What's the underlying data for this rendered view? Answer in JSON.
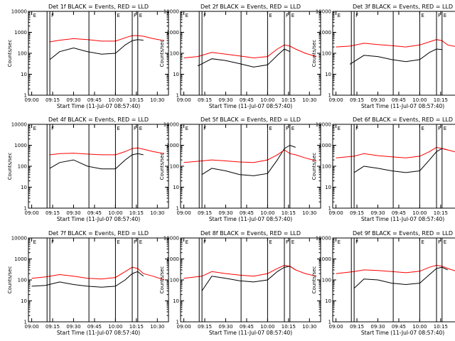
{
  "figure": {
    "ylabel": "Counts/sec",
    "xlabel": "Start Time (11-Jul-07 08:57:40)",
    "colors": {
      "events": "#000000",
      "lld": "#ff0000",
      "axes": "#000000"
    },
    "x_tick_labels": [
      "09:00",
      "09:15",
      "09:30",
      "09:45",
      "10:00",
      "10:15",
      "10:30"
    ],
    "y_tick_labels": [
      "1",
      "10",
      "100",
      "1000",
      "10000"
    ],
    "marker_labels": [
      "E",
      "F",
      "E",
      "F",
      "E"
    ]
  },
  "chart_data": [
    {
      "type": "line",
      "title": "Det 1f BLACK = Events, RED = LLD",
      "xlabel": "Start Time (11-Jul-07 08:57:40)",
      "ylabel": "Counts/sec",
      "yscale": "log",
      "xlim": [
        "08:57:40",
        "10:38"
      ],
      "ylim": [
        1,
        10000
      ],
      "x": [
        "09:13",
        "09:20",
        "09:30",
        "09:40",
        "09:50",
        "10:00",
        "10:07",
        "10:12",
        "10:16",
        "10:20",
        "10:27",
        "10:35"
      ],
      "series": [
        {
          "name": "Events",
          "color": "#000000",
          "values": [
            50,
            120,
            180,
            120,
            90,
            100,
            250,
            400,
            450,
            420,
            null,
            null
          ]
        },
        {
          "name": "LLD",
          "color": "#ff0000",
          "values": [
            350,
            420,
            500,
            450,
            380,
            380,
            550,
            700,
            700,
            650,
            500,
            400
          ]
        }
      ]
    },
    {
      "type": "line",
      "title": "Det 2f BLACK = Events, RED = LLD",
      "xlabel": "Start Time (11-Jul-07 08:57:40)",
      "ylabel": "Counts/sec",
      "yscale": "log",
      "xlim": [
        "08:57:40",
        "10:38"
      ],
      "ylim": [
        1,
        10000
      ],
      "x": [
        "09:00",
        "09:10",
        "09:20",
        "09:30",
        "09:40",
        "09:50",
        "10:00",
        "10:07",
        "10:12",
        "10:16",
        "10:20",
        "10:27",
        "10:35"
      ],
      "series": [
        {
          "name": "Events",
          "color": "#000000",
          "values": [
            null,
            25,
            55,
            45,
            32,
            22,
            28,
            80,
            160,
            120,
            null,
            null,
            null
          ]
        },
        {
          "name": "LLD",
          "color": "#ff0000",
          "values": [
            60,
            70,
            110,
            90,
            75,
            60,
            70,
            160,
            250,
            220,
            160,
            100,
            70
          ]
        }
      ]
    },
    {
      "type": "line",
      "title": "Det 3f BLACK = Events, RED = LLD",
      "xlabel": "Start Time (11-Jul-07 08:57:40)",
      "ylabel": "Counts/sec",
      "yscale": "log",
      "xlim": [
        "08:57:40",
        "10:38"
      ],
      "ylim": [
        1,
        10000
      ],
      "x": [
        "09:00",
        "09:10",
        "09:20",
        "09:30",
        "09:40",
        "09:50",
        "10:00",
        "10:07",
        "10:12",
        "10:16",
        "10:20",
        "10:27",
        "10:35"
      ],
      "series": [
        {
          "name": "Events",
          "color": "#000000",
          "values": [
            null,
            30,
            80,
            70,
            50,
            40,
            50,
            110,
            160,
            150,
            null,
            null,
            null
          ]
        },
        {
          "name": "LLD",
          "color": "#ff0000",
          "values": [
            200,
            220,
            300,
            260,
            230,
            200,
            250,
            350,
            450,
            400,
            250,
            200,
            180
          ]
        }
      ]
    },
    {
      "type": "line",
      "title": "Det 4f BLACK = Events, RED = LLD",
      "xlabel": "Start Time (11-Jul-07 08:57:40)",
      "ylabel": "Counts/sec",
      "yscale": "log",
      "xlim": [
        "08:57:40",
        "10:38"
      ],
      "ylim": [
        1,
        10000
      ],
      "x": [
        "09:13",
        "09:20",
        "09:30",
        "09:40",
        "09:50",
        "10:00",
        "10:07",
        "10:12",
        "10:16",
        "10:20",
        "10:27",
        "10:35"
      ],
      "series": [
        {
          "name": "Events",
          "color": "#000000",
          "values": [
            80,
            150,
            200,
            100,
            75,
            75,
            200,
            350,
            400,
            350,
            null,
            null
          ]
        },
        {
          "name": "LLD",
          "color": "#ff0000",
          "values": [
            350,
            400,
            420,
            380,
            350,
            350,
            500,
            700,
            750,
            650,
            500,
            400
          ]
        }
      ]
    },
    {
      "type": "line",
      "title": "Det 5f BLACK = Events, RED = LLD",
      "xlabel": "Start Time (11-Jul-07 08:57:40)",
      "ylabel": "Counts/sec",
      "yscale": "log",
      "xlim": [
        "08:57:40",
        "10:38"
      ],
      "ylim": [
        1,
        10000
      ],
      "x": [
        "09:00",
        "09:13",
        "09:20",
        "09:30",
        "09:40",
        "09:50",
        "10:00",
        "10:07",
        "10:12",
        "10:16",
        "10:20",
        "10:27",
        "10:35"
      ],
      "series": [
        {
          "name": "Events",
          "color": "#000000",
          "values": [
            null,
            40,
            80,
            60,
            40,
            35,
            45,
            200,
            700,
            1000,
            800,
            null,
            null
          ]
        },
        {
          "name": "LLD",
          "color": "#ff0000",
          "values": [
            150,
            180,
            200,
            180,
            160,
            150,
            200,
            350,
            600,
            400,
            350,
            250,
            180
          ]
        }
      ]
    },
    {
      "type": "line",
      "title": "Det 6f BLACK = Events, RED = LLD",
      "xlabel": "Start Time (11-Jul-07 08:57:40)",
      "ylabel": "Counts/sec",
      "yscale": "log",
      "xlim": [
        "08:57:40",
        "10:38"
      ],
      "ylim": [
        1,
        10000
      ],
      "x": [
        "09:00",
        "09:13",
        "09:20",
        "09:30",
        "09:40",
        "09:50",
        "10:00",
        "10:07",
        "10:12",
        "10:16",
        "10:20",
        "10:27",
        "10:35"
      ],
      "series": [
        {
          "name": "Events",
          "color": "#000000",
          "values": [
            null,
            50,
            100,
            80,
            60,
            50,
            60,
            200,
            500,
            700,
            600,
            null,
            null
          ]
        },
        {
          "name": "LLD",
          "color": "#ff0000",
          "values": [
            250,
            300,
            400,
            320,
            280,
            250,
            300,
            500,
            800,
            700,
            600,
            450,
            350
          ]
        }
      ]
    },
    {
      "type": "line",
      "title": "Det 7f BLACK = Events, RED = LLD",
      "xlabel": "Start Time (11-Jul-07 08:57:40)",
      "ylabel": "Counts/sec",
      "yscale": "log",
      "xlim": [
        "08:57:40",
        "10:38"
      ],
      "ylim": [
        1,
        10000
      ],
      "x": [
        "09:00",
        "09:10",
        "09:20",
        "09:30",
        "09:40",
        "09:50",
        "10:00",
        "10:07",
        "10:12",
        "10:16",
        "10:20",
        "10:27",
        "10:35"
      ],
      "series": [
        {
          "name": "Events",
          "color": "#000000",
          "values": [
            50,
            55,
            80,
            60,
            50,
            45,
            50,
            100,
            200,
            250,
            150,
            null,
            null
          ]
        },
        {
          "name": "LLD",
          "color": "#ff0000",
          "values": [
            120,
            140,
            180,
            150,
            120,
            110,
            130,
            250,
            400,
            350,
            200,
            150,
            100
          ]
        }
      ]
    },
    {
      "type": "line",
      "title": "Det 8f BLACK = Events, RED = LLD",
      "xlabel": "Start Time (11-Jul-07 08:57:40)",
      "ylabel": "Counts/sec",
      "yscale": "log",
      "xlim": [
        "08:57:40",
        "10:38"
      ],
      "ylim": [
        1,
        10000
      ],
      "x": [
        "09:00",
        "09:13",
        "09:20",
        "09:30",
        "09:40",
        "09:50",
        "10:00",
        "10:07",
        "10:12",
        "10:16",
        "10:20",
        "10:27",
        "10:35"
      ],
      "series": [
        {
          "name": "Events",
          "color": "#000000",
          "values": [
            null,
            30,
            150,
            120,
            90,
            80,
            100,
            250,
            400,
            450,
            300,
            null,
            null
          ]
        },
        {
          "name": "LLD",
          "color": "#ff0000",
          "values": [
            120,
            150,
            250,
            200,
            170,
            150,
            200,
            350,
            500,
            450,
            300,
            200,
            150
          ]
        }
      ]
    },
    {
      "type": "line",
      "title": "Det 9f BLACK = Events, RED = LLD",
      "xlabel": "Start Time (11-Jul-07 08:57:40)",
      "ylabel": "Counts/sec",
      "yscale": "log",
      "xlim": [
        "08:57:40",
        "10:38"
      ],
      "ylim": [
        1,
        10000
      ],
      "x": [
        "09:00",
        "09:13",
        "09:20",
        "09:30",
        "09:40",
        "09:50",
        "10:00",
        "10:07",
        "10:12",
        "10:16",
        "10:20",
        "10:27",
        "10:35"
      ],
      "series": [
        {
          "name": "Events",
          "color": "#000000",
          "values": [
            null,
            40,
            110,
            100,
            70,
            60,
            70,
            180,
            350,
            400,
            300,
            null,
            null
          ]
        },
        {
          "name": "LLD",
          "color": "#ff0000",
          "values": [
            200,
            250,
            300,
            280,
            250,
            220,
            260,
            400,
            500,
            450,
            350,
            250,
            200
          ]
        }
      ]
    }
  ]
}
